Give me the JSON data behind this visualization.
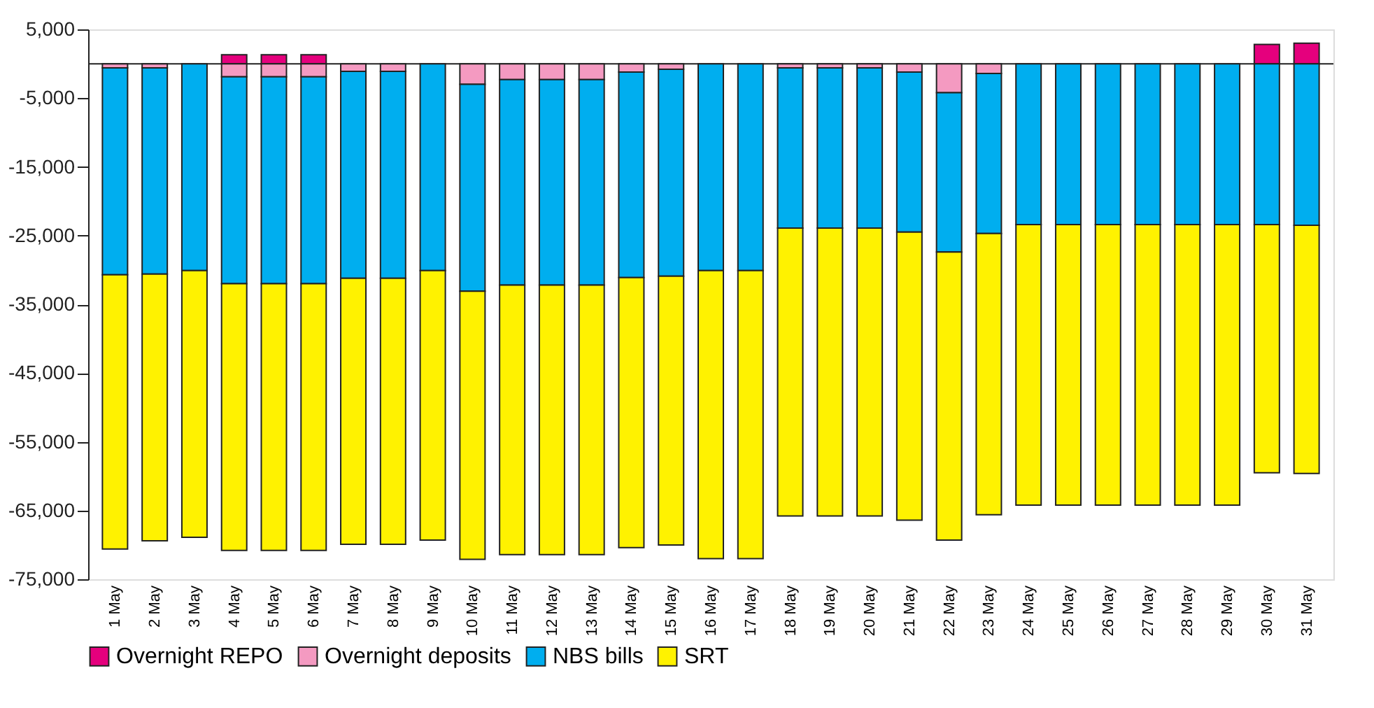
{
  "chart_data": {
    "type": "bar",
    "stacked": true,
    "categories": [
      "1 May",
      "2 May",
      "3 May",
      "4 May",
      "5 May",
      "6 May",
      "7 May",
      "8 May",
      "9 May",
      "10 May",
      "11 May",
      "12 May",
      "13 May",
      "14 May",
      "15 May",
      "16 May",
      "17 May",
      "18 May",
      "19 May",
      "20 May",
      "21 May",
      "22 May",
      "23 May",
      "24 May",
      "25 May",
      "26 May",
      "27 May",
      "28 May",
      "29 May",
      "30 May",
      "31 May"
    ],
    "series": [
      {
        "name": "Overnight REPO",
        "color": "#e5007d",
        "values": [
          0,
          0,
          0,
          1300,
          1300,
          1300,
          0,
          0,
          0,
          0,
          0,
          0,
          0,
          0,
          0,
          0,
          0,
          0,
          0,
          0,
          0,
          0,
          0,
          0,
          0,
          0,
          0,
          0,
          0,
          2800,
          3000
        ]
      },
      {
        "name": "Overnight deposits",
        "color": "#f49ac1",
        "values": [
          -600,
          -600,
          0,
          -1900,
          -1900,
          -1900,
          -1100,
          -1100,
          0,
          -3000,
          -2300,
          -2300,
          -2300,
          -1200,
          -800,
          0,
          0,
          -600,
          -600,
          -600,
          -1200,
          -4200,
          -1400,
          0,
          0,
          0,
          0,
          0,
          0,
          0,
          0
        ]
      },
      {
        "name": "NBS bills",
        "color": "#00aeef",
        "values": [
          -30100,
          -30000,
          -30100,
          -30100,
          -30100,
          -30100,
          -30100,
          -30100,
          -30100,
          -30100,
          -29900,
          -29900,
          -29900,
          -29900,
          -30100,
          -30100,
          -30100,
          -23300,
          -23300,
          -23300,
          -23300,
          -23200,
          -23300,
          -23400,
          -23400,
          -23400,
          -23400,
          -23400,
          -23400,
          -23400,
          -23500
        ]
      },
      {
        "name": "SRT",
        "color": "#fff200",
        "values": [
          -39900,
          -38800,
          -38800,
          -38800,
          -38800,
          -38800,
          -38700,
          -38700,
          -39200,
          -39000,
          -39200,
          -39200,
          -39200,
          -39300,
          -39100,
          -41900,
          -41900,
          -41900,
          -41900,
          -41900,
          -41900,
          -41900,
          -40900,
          -40800,
          -40800,
          -40800,
          -40800,
          -40800,
          -40800,
          -36100,
          -36100
        ]
      }
    ],
    "ylim": [
      -75000,
      5000
    ],
    "yticks": [
      {
        "value": 5000,
        "label": "5,000"
      },
      {
        "value": -5000,
        "label": "-5,000"
      },
      {
        "value": -15000,
        "label": "-15,000"
      },
      {
        "value": -25000,
        "label": "-25,000"
      },
      {
        "value": -35000,
        "label": "-35,000"
      },
      {
        "value": -45000,
        "label": "-45,000"
      },
      {
        "value": -55000,
        "label": "-55,000"
      },
      {
        "value": -65000,
        "label": "-65,000"
      },
      {
        "value": -75000,
        "label": "-75,000"
      }
    ],
    "ref_lines": [
      {
        "axis": "y",
        "value": 0
      }
    ],
    "grid": false,
    "legend": "bottom"
  }
}
